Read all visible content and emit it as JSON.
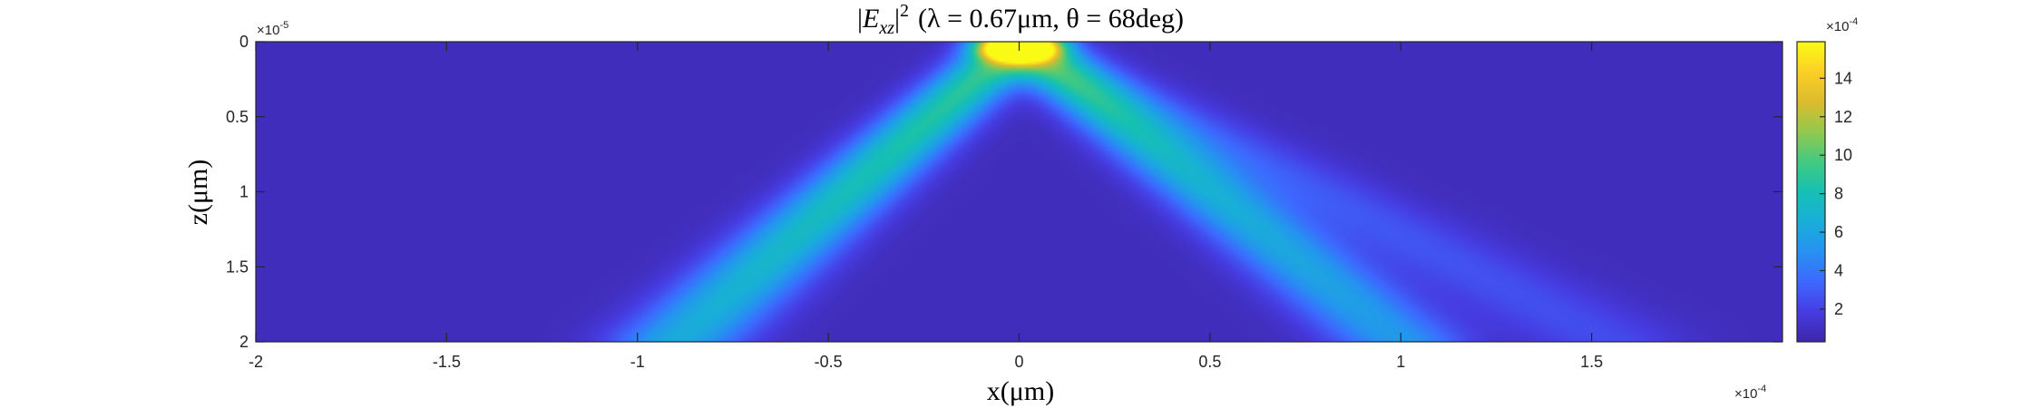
{
  "chart_data": {
    "type": "heatmap",
    "title": "|E_xz|² (λ = 0.67μm, θ = 68deg)",
    "title_parts": {
      "abs_open": "|",
      "base": "E",
      "subscript": "xz",
      "abs_close": "|",
      "power": "2",
      "params": "(λ = 0.67μm, θ = 68deg)"
    },
    "xlabel": "x(μm)",
    "ylabel": "z(μm)",
    "x_ticks": [
      "-2",
      "-1.5",
      "-1",
      "-0.5",
      "0",
      "0.5",
      "1",
      "1.5"
    ],
    "x_tick_values": [
      -2,
      -1.5,
      -1,
      -0.5,
      0,
      0.5,
      1,
      1.5
    ],
    "x_exponent": "×10",
    "x_exponent_power": "-4",
    "xlim": [
      -2,
      2
    ],
    "y_ticks": [
      "0",
      "0.5",
      "1",
      "1.5",
      "2"
    ],
    "y_tick_values": [
      0,
      0.5,
      1,
      1.5,
      2
    ],
    "y_exponent": "×10",
    "y_exponent_power": "-5",
    "ylim": [
      0,
      2
    ],
    "y_reversed": true,
    "colorbar": {
      "ticks": [
        "2",
        "4",
        "6",
        "8",
        "10",
        "12",
        "14"
      ],
      "tick_values": [
        2,
        4,
        6,
        8,
        10,
        12,
        14
      ],
      "range": [
        0.3,
        15.9
      ],
      "exponent": "×10",
      "exponent_power": "-4",
      "colormap": "parula"
    },
    "field": {
      "background": 0.8,
      "peak": {
        "x": 0,
        "z": 0.05,
        "value": 15.9
      },
      "beams": [
        {
          "name": "left beam",
          "from": [
            0,
            0
          ],
          "to": [
            -0.9,
            2
          ],
          "peak_value": 8.5,
          "width": 0.07
        },
        {
          "name": "right beam",
          "from": [
            0,
            0
          ],
          "to": [
            1.0,
            2
          ],
          "peak_value": 7.0,
          "width": 0.07
        },
        {
          "name": "faint right beam",
          "from": [
            0,
            0
          ],
          "to": [
            1.55,
            2
          ],
          "peak_value": 2.5,
          "width": 0.08
        }
      ]
    },
    "colors": {
      "parula_low": "#3e26a8",
      "parula_high": "#f9fb15"
    }
  }
}
